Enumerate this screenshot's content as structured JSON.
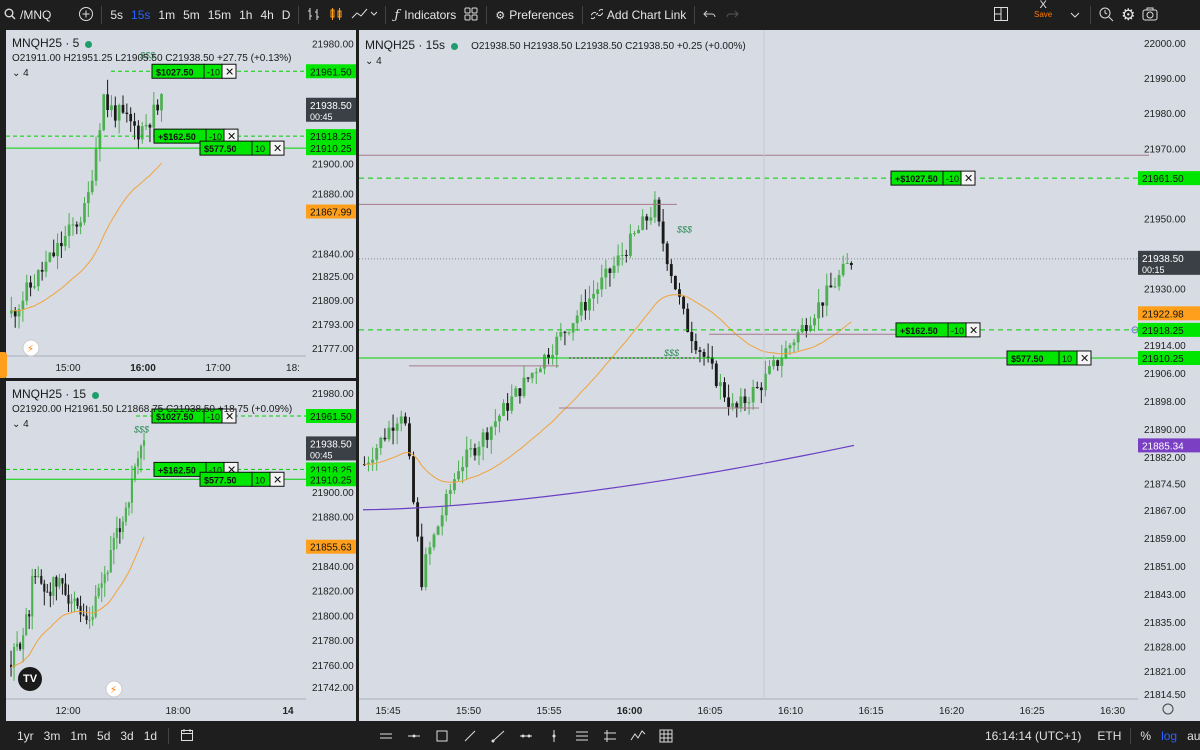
{
  "toolbar": {
    "symbol": "/MNQ",
    "timeframes": [
      "5s",
      "15s",
      "1m",
      "5m",
      "15m",
      "1h",
      "4h",
      "D"
    ],
    "active_timeframe": "15s",
    "indicators_label": "Indicators",
    "preferences_label": "Preferences",
    "add_chart_link_label": "Add Chart Link",
    "save_top": "X",
    "save_label": "Save"
  },
  "bottombar": {
    "ranges": [
      "1yr",
      "3m",
      "1m",
      "5d",
      "3d",
      "1d"
    ],
    "clock": "16:14:14 (UTC+1)",
    "session": "ETH",
    "percent": "%",
    "log": "log",
    "auto": "auto"
  },
  "colors": {
    "up": "#4caf50",
    "down": "#1a1a1a",
    "green_tag": "#00e600",
    "orange_tag": "#ff9f1c",
    "purple_tag": "#7b3fc4",
    "dark_tag": "#3b3f46",
    "panel_bg": "#d6dbe4"
  },
  "chart_tl": {
    "title": "MNQH25 · 5",
    "ohlc": "O21911.00 H21951.25 L21905.50 C21938.50 +27.75 (+0.13%)",
    "collapse": "4",
    "y_ticks": [
      "21980.00",
      "21961.50",
      "21938.50",
      "21918.25",
      "21910.25",
      "21900.00",
      "21880.00",
      "21867.99",
      "21840.00",
      "21825.00",
      "21809.00",
      "21793.00",
      "21777.00"
    ],
    "x_ticks": [
      "15:00",
      "16:00",
      "17:00",
      "18:"
    ],
    "price_tag": "21938.50",
    "countdown": "00:45",
    "orange_value": "21867.99",
    "pnl1": "+$162.50",
    "pnl1_qty": "-10",
    "pnl2": "$577.50",
    "pnl2_qty": "10",
    "top_label": "$1027.50",
    "top_qty": "-10",
    "dollars": "$$$"
  },
  "chart_bl": {
    "title": "MNQH25 · 15",
    "ohlc": "O21920.00 H21961.50 L21868.75 C21938.50 +18.75 (+0.09%)",
    "collapse": "4",
    "y_ticks": [
      "21980.00",
      "21961.50",
      "21938.50",
      "21918.25",
      "21910.25",
      "21900.00",
      "21880.00",
      "21855.63",
      "21840.00",
      "21820.00",
      "21800.00",
      "21780.00",
      "21760.00",
      "21742.00"
    ],
    "x_ticks": [
      "12:00",
      "18:00",
      "14"
    ],
    "price_tag": "21938.50",
    "countdown": "00:45",
    "orange_value": "21855.63",
    "pnl1": "+$162.50",
    "pnl1_qty": "-10",
    "pnl2": "$577.50",
    "pnl2_qty": "10",
    "top_label": "$1027.50",
    "top_qty": "-10",
    "dollars": "$$$"
  },
  "chart_main": {
    "title": "MNQH25 · 15s",
    "ohlc": "O21938.50 H21938.50 L21938.50 C21938.50 +0.25 (+0.00%)",
    "collapse": "4",
    "y_ticks": [
      "22000.00",
      "21990.00",
      "21980.00",
      "21970.00",
      "21961.50",
      "21950.00",
      "21938.50",
      "21930.00",
      "21922.98",
      "21918.25",
      "21914.00",
      "21910.25",
      "21906.00",
      "21898.00",
      "21890.00",
      "21885.34",
      "21882.00",
      "21874.50",
      "21867.00",
      "21859.00",
      "21851.00",
      "21843.00",
      "21835.00",
      "21828.00",
      "21821.00",
      "21814.50"
    ],
    "x_ticks": [
      "15:45",
      "15:50",
      "15:55",
      "16:00",
      "16:05",
      "16:10",
      "16:15",
      "16:20",
      "16:25",
      "16:30"
    ],
    "price_tag": "21938.50",
    "countdown": "00:15",
    "orange_value": "21922.98",
    "purple_value": "21885.34",
    "pnl_top": "+$1027.50",
    "pnl_top_qty": "-10",
    "pnl1": "+$162.50",
    "pnl1_qty": "-10",
    "pnl2": "$577.50",
    "pnl2_qty": "10",
    "dollars": "$$$"
  }
}
